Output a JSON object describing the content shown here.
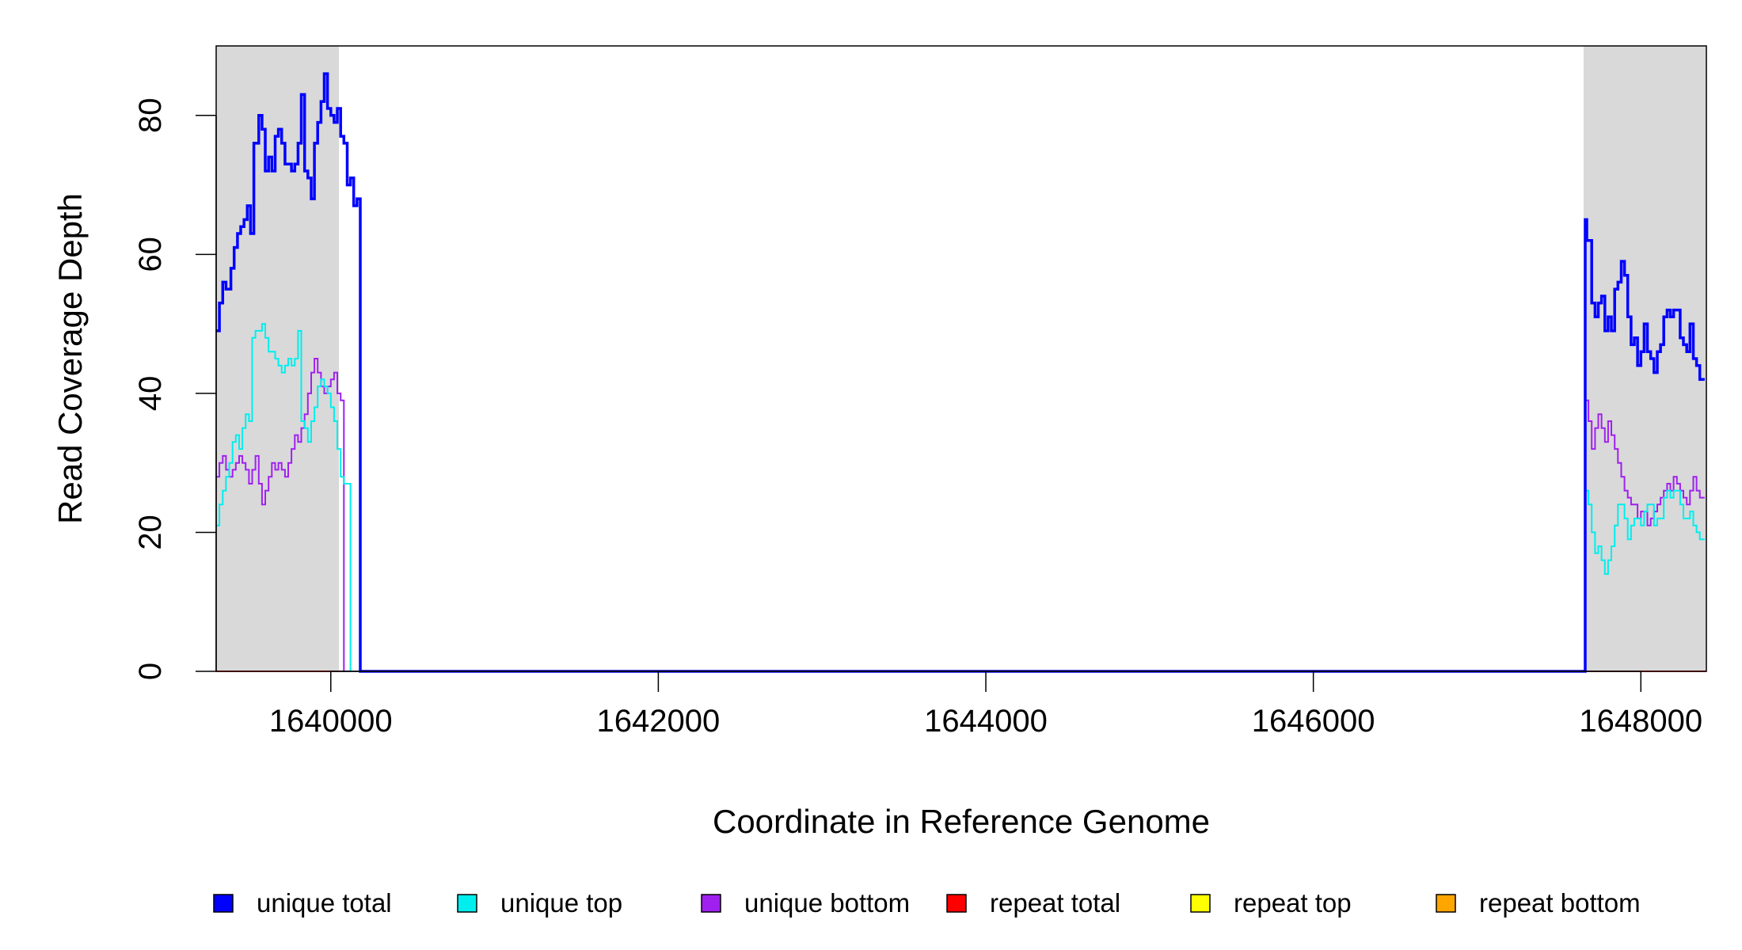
{
  "chart_data": {
    "type": "line",
    "title": "",
    "xlabel": "Coordinate in Reference Genome",
    "ylabel": "Read Coverage Depth",
    "xlim": [
      1639300,
      1648400
    ],
    "ylim": [
      0,
      90
    ],
    "x_ticks": [
      1640000,
      1642000,
      1644000,
      1646000,
      1648000
    ],
    "x_tick_labels": [
      "1640000",
      "1642000",
      "1644000",
      "1646000",
      "1648000"
    ],
    "y_ticks": [
      0,
      20,
      40,
      60,
      80
    ],
    "y_tick_labels": [
      "0",
      "20",
      "40",
      "60",
      "80"
    ],
    "grid": false,
    "legend_position": "bottom",
    "shaded_regions": [
      {
        "x0": 1639300,
        "x1": 1640050,
        "color": "#d9d9d9"
      },
      {
        "x0": 1647650,
        "x1": 1648400,
        "color": "#d9d9d9"
      }
    ],
    "series": [
      {
        "name": "unique total",
        "color": "#0000ff",
        "points": [
          [
            1639300,
            49
          ],
          [
            1639320,
            53
          ],
          [
            1639340,
            56
          ],
          [
            1639360,
            55
          ],
          [
            1639390,
            58
          ],
          [
            1639410,
            61
          ],
          [
            1639430,
            63
          ],
          [
            1639450,
            64
          ],
          [
            1639470,
            65
          ],
          [
            1639490,
            67
          ],
          [
            1639510,
            63
          ],
          [
            1639530,
            76
          ],
          [
            1639560,
            80
          ],
          [
            1639580,
            78
          ],
          [
            1639600,
            72
          ],
          [
            1639620,
            74
          ],
          [
            1639640,
            72
          ],
          [
            1639660,
            77
          ],
          [
            1639680,
            78
          ],
          [
            1639700,
            76
          ],
          [
            1639720,
            73
          ],
          [
            1639760,
            72
          ],
          [
            1639780,
            73
          ],
          [
            1639800,
            76
          ],
          [
            1639820,
            83
          ],
          [
            1639840,
            72
          ],
          [
            1639860,
            71
          ],
          [
            1639880,
            68
          ],
          [
            1639900,
            76
          ],
          [
            1639920,
            79
          ],
          [
            1639940,
            82
          ],
          [
            1639960,
            86
          ],
          [
            1639980,
            81
          ],
          [
            1640000,
            80
          ],
          [
            1640020,
            79
          ],
          [
            1640040,
            81
          ],
          [
            1640060,
            77
          ],
          [
            1640080,
            76
          ],
          [
            1640100,
            70
          ],
          [
            1640120,
            71
          ],
          [
            1640140,
            67
          ],
          [
            1640160,
            68
          ],
          [
            1640180,
            0
          ],
          [
            1647650,
            0
          ],
          [
            1647660,
            65
          ],
          [
            1647670,
            62
          ],
          [
            1647700,
            53
          ],
          [
            1647720,
            51
          ],
          [
            1647740,
            53
          ],
          [
            1647760,
            54
          ],
          [
            1647780,
            49
          ],
          [
            1647800,
            51
          ],
          [
            1647820,
            49
          ],
          [
            1647840,
            55
          ],
          [
            1647860,
            56
          ],
          [
            1647880,
            59
          ],
          [
            1647900,
            57
          ],
          [
            1647920,
            51
          ],
          [
            1647940,
            47
          ],
          [
            1647960,
            48
          ],
          [
            1647980,
            44
          ],
          [
            1648000,
            46
          ],
          [
            1648020,
            50
          ],
          [
            1648040,
            46
          ],
          [
            1648060,
            45
          ],
          [
            1648080,
            43
          ],
          [
            1648100,
            46
          ],
          [
            1648120,
            47
          ],
          [
            1648140,
            51
          ],
          [
            1648160,
            52
          ],
          [
            1648180,
            51
          ],
          [
            1648200,
            52
          ],
          [
            1648220,
            52
          ],
          [
            1648240,
            48
          ],
          [
            1648260,
            47
          ],
          [
            1648280,
            46
          ],
          [
            1648300,
            50
          ],
          [
            1648320,
            45
          ],
          [
            1648340,
            44
          ],
          [
            1648360,
            42
          ]
        ]
      },
      {
        "name": "unique top",
        "color": "#00eeee",
        "points": [
          [
            1639300,
            21
          ],
          [
            1639320,
            24
          ],
          [
            1639340,
            26
          ],
          [
            1639360,
            28
          ],
          [
            1639380,
            30
          ],
          [
            1639400,
            33
          ],
          [
            1639420,
            34
          ],
          [
            1639440,
            32
          ],
          [
            1639460,
            35
          ],
          [
            1639480,
            37
          ],
          [
            1639500,
            36
          ],
          [
            1639520,
            48
          ],
          [
            1639540,
            49
          ],
          [
            1639560,
            49
          ],
          [
            1639580,
            50
          ],
          [
            1639600,
            48
          ],
          [
            1639620,
            46
          ],
          [
            1639640,
            46
          ],
          [
            1639660,
            45
          ],
          [
            1639680,
            44
          ],
          [
            1639700,
            43
          ],
          [
            1639720,
            44
          ],
          [
            1639740,
            45
          ],
          [
            1639760,
            44
          ],
          [
            1639780,
            45
          ],
          [
            1639800,
            49
          ],
          [
            1639820,
            36
          ],
          [
            1639840,
            35
          ],
          [
            1639860,
            33
          ],
          [
            1639880,
            36
          ],
          [
            1639900,
            38
          ],
          [
            1639920,
            41
          ],
          [
            1639940,
            42
          ],
          [
            1639960,
            41
          ],
          [
            1639980,
            40
          ],
          [
            1640000,
            38
          ],
          [
            1640020,
            36
          ],
          [
            1640040,
            32
          ],
          [
            1640060,
            28
          ],
          [
            1640080,
            27
          ],
          [
            1640100,
            27
          ],
          [
            1640120,
            0
          ],
          [
            1647650,
            0
          ],
          [
            1647660,
            26
          ],
          [
            1647680,
            24
          ],
          [
            1647700,
            20
          ],
          [
            1647720,
            17
          ],
          [
            1647740,
            18
          ],
          [
            1647760,
            16
          ],
          [
            1647780,
            14
          ],
          [
            1647800,
            16
          ],
          [
            1647820,
            18
          ],
          [
            1647840,
            21
          ],
          [
            1647860,
            24
          ],
          [
            1647880,
            24
          ],
          [
            1647900,
            22
          ],
          [
            1647920,
            19
          ],
          [
            1647940,
            21
          ],
          [
            1647960,
            22
          ],
          [
            1647980,
            22
          ],
          [
            1648000,
            21
          ],
          [
            1648020,
            23
          ],
          [
            1648040,
            24
          ],
          [
            1648060,
            24
          ],
          [
            1648080,
            21
          ],
          [
            1648100,
            22
          ],
          [
            1648120,
            22
          ],
          [
            1648140,
            25
          ],
          [
            1648160,
            26
          ],
          [
            1648180,
            25
          ],
          [
            1648200,
            26
          ],
          [
            1648220,
            26
          ],
          [
            1648240,
            24
          ],
          [
            1648260,
            22
          ],
          [
            1648280,
            22
          ],
          [
            1648300,
            23
          ],
          [
            1648320,
            21
          ],
          [
            1648340,
            20
          ],
          [
            1648360,
            19
          ]
        ]
      },
      {
        "name": "unique bottom",
        "color": "#a020f0",
        "points": [
          [
            1639300,
            28
          ],
          [
            1639320,
            30
          ],
          [
            1639340,
            31
          ],
          [
            1639360,
            29
          ],
          [
            1639380,
            28
          ],
          [
            1639400,
            29
          ],
          [
            1639420,
            30
          ],
          [
            1639440,
            31
          ],
          [
            1639460,
            30
          ],
          [
            1639480,
            29
          ],
          [
            1639500,
            27
          ],
          [
            1639520,
            29
          ],
          [
            1639540,
            31
          ],
          [
            1639560,
            27
          ],
          [
            1639580,
            24
          ],
          [
            1639600,
            26
          ],
          [
            1639620,
            28
          ],
          [
            1639640,
            30
          ],
          [
            1639660,
            29
          ],
          [
            1639680,
            30
          ],
          [
            1639700,
            29
          ],
          [
            1639720,
            28
          ],
          [
            1639740,
            30
          ],
          [
            1639760,
            32
          ],
          [
            1639780,
            34
          ],
          [
            1639800,
            33
          ],
          [
            1639820,
            35
          ],
          [
            1639840,
            37
          ],
          [
            1639860,
            40
          ],
          [
            1639880,
            43
          ],
          [
            1639900,
            45
          ],
          [
            1639920,
            43
          ],
          [
            1639940,
            41
          ],
          [
            1639960,
            40
          ],
          [
            1639980,
            41
          ],
          [
            1640000,
            42
          ],
          [
            1640020,
            43
          ],
          [
            1640040,
            40
          ],
          [
            1640060,
            39
          ],
          [
            1640080,
            0
          ],
          [
            1647650,
            0
          ],
          [
            1647660,
            39
          ],
          [
            1647680,
            36
          ],
          [
            1647700,
            32
          ],
          [
            1647720,
            35
          ],
          [
            1647740,
            37
          ],
          [
            1647760,
            35
          ],
          [
            1647780,
            33
          ],
          [
            1647800,
            36
          ],
          [
            1647820,
            34
          ],
          [
            1647840,
            32
          ],
          [
            1647860,
            30
          ],
          [
            1647880,
            28
          ],
          [
            1647900,
            26
          ],
          [
            1647920,
            25
          ],
          [
            1647940,
            24
          ],
          [
            1647960,
            24
          ],
          [
            1647980,
            22
          ],
          [
            1648000,
            23
          ],
          [
            1648020,
            23
          ],
          [
            1648040,
            21
          ],
          [
            1648060,
            22
          ],
          [
            1648080,
            23
          ],
          [
            1648100,
            24
          ],
          [
            1648120,
            25
          ],
          [
            1648140,
            26
          ],
          [
            1648160,
            27
          ],
          [
            1648180,
            26
          ],
          [
            1648200,
            28
          ],
          [
            1648220,
            27
          ],
          [
            1648240,
            26
          ],
          [
            1648260,
            25
          ],
          [
            1648280,
            24
          ],
          [
            1648300,
            26
          ],
          [
            1648320,
            28
          ],
          [
            1648340,
            26
          ],
          [
            1648360,
            25
          ]
        ]
      },
      {
        "name": "repeat total",
        "color": "#ff0000",
        "points": [
          [
            1639300,
            0
          ],
          [
            1648400,
            0
          ]
        ]
      },
      {
        "name": "repeat top",
        "color": "#ffff00",
        "points": [
          [
            1639300,
            0
          ],
          [
            1648400,
            0
          ]
        ]
      },
      {
        "name": "repeat bottom",
        "color": "#ffa500",
        "points": [
          [
            1639300,
            0
          ],
          [
            1648400,
            0
          ]
        ]
      }
    ]
  }
}
